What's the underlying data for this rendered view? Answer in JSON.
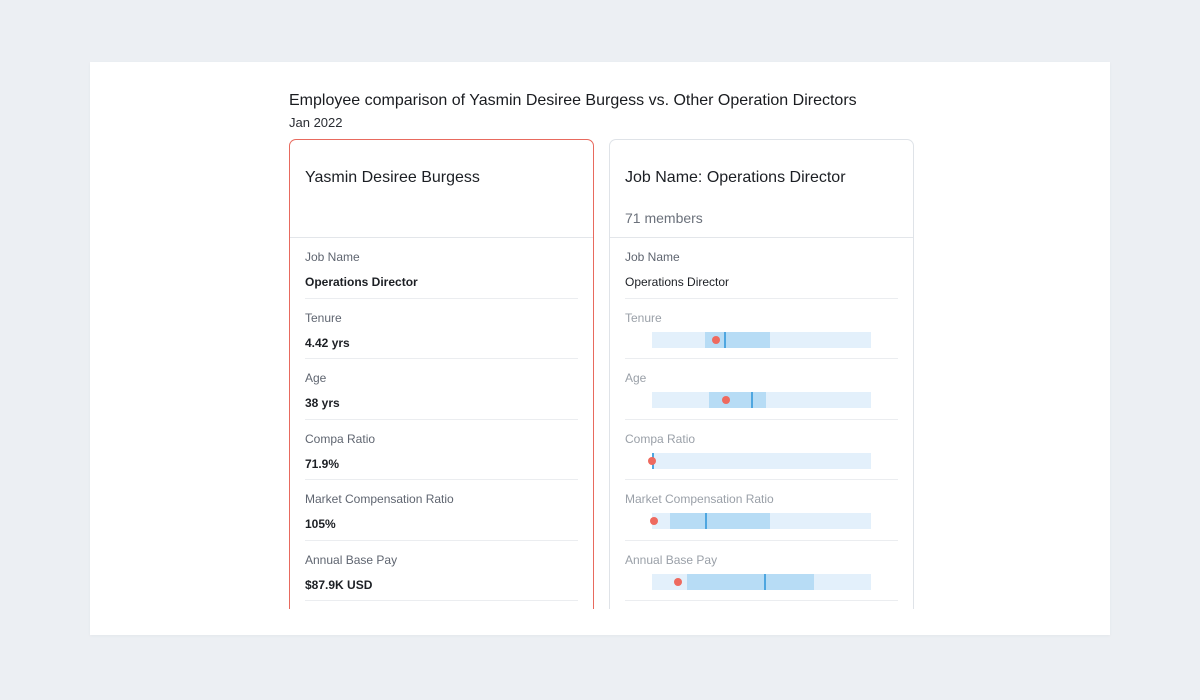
{
  "header": {
    "title": "Employee comparison of Yasmin Desiree Burgess vs. Other Operation Directors",
    "subtitle": "Jan 2022"
  },
  "employee_card": {
    "name": "Yasmin Desiree Burgess",
    "rows": [
      {
        "label": "Job Name",
        "value": "Operations Director"
      },
      {
        "label": "Tenure",
        "value": "4.42 yrs"
      },
      {
        "label": "Age",
        "value": "38 yrs"
      },
      {
        "label": "Compa Ratio",
        "value": "71.9%"
      },
      {
        "label": "Market Compensation Ratio",
        "value": "105%"
      },
      {
        "label": "Annual Base Pay",
        "value": "$87.9K USD"
      }
    ]
  },
  "group_card": {
    "name": "Job Name: Operations Director",
    "members": "71 members",
    "job_row": {
      "label": "Job Name",
      "value": "Operations Director"
    },
    "range_rows": [
      {
        "label": "Tenure",
        "band_start": 0.24,
        "band_end": 0.54,
        "median": 0.33,
        "marker": 0.29
      },
      {
        "label": "Age",
        "band_start": 0.26,
        "band_end": 0.52,
        "median": 0.45,
        "marker": 0.34
      },
      {
        "label": "Compa Ratio",
        "band_start": 0.0,
        "band_end": 0.0,
        "median": 0.0,
        "marker": 0.0
      },
      {
        "label": "Market Compensation Ratio",
        "band_start": 0.08,
        "band_end": 0.54,
        "median": 0.24,
        "marker": 0.01
      },
      {
        "label": "Annual Base Pay",
        "band_start": 0.16,
        "band_end": 0.74,
        "median": 0.51,
        "marker": 0.12
      }
    ]
  },
  "colors": {
    "employee_border": "#e86a5e",
    "marker": "#ee6a5f",
    "band": "#b7dcf5",
    "track": "#e3f0fb",
    "median": "#4ea6e0"
  }
}
